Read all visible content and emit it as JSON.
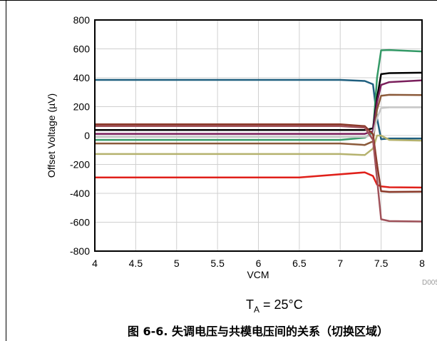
{
  "chart_data": {
    "type": "line",
    "title": "",
    "xlabel": "VCM",
    "ylabel": "Offset Voltage (µV)",
    "xlim": [
      4,
      8
    ],
    "ylim": [
      -800,
      800
    ],
    "x_ticks": [
      "4",
      "4.5",
      "5",
      "5.5",
      "6",
      "6.5",
      "7",
      "7.5",
      "8"
    ],
    "y_ticks": [
      "800",
      "600",
      "400",
      "200",
      "0",
      "-200",
      "-400",
      "-600",
      "-800"
    ],
    "grid": true,
    "legend": "none",
    "chart_id": "D005",
    "series": [
      {
        "color": "#1f5f7f",
        "x": [
          4,
          7.0,
          7.3,
          7.4,
          7.45,
          7.5,
          7.6,
          8
        ],
        "y": [
          385,
          385,
          378,
          355,
          120,
          -25,
          -20,
          -20
        ]
      },
      {
        "color": "#339966",
        "x": [
          4,
          7.0,
          7.3,
          7.4,
          7.45,
          7.5,
          7.6,
          8
        ],
        "y": [
          -30,
          -30,
          -15,
          20,
          400,
          590,
          592,
          582
        ]
      },
      {
        "color": "#000000",
        "x": [
          4,
          7.0,
          7.3,
          7.4,
          7.45,
          7.5,
          7.6,
          8
        ],
        "y": [
          38,
          38,
          38,
          50,
          260,
          425,
          432,
          435
        ]
      },
      {
        "color": "#7a1f5c",
        "x": [
          4,
          7.0,
          7.3,
          7.4,
          7.45,
          7.5,
          7.6,
          8
        ],
        "y": [
          12,
          12,
          12,
          30,
          230,
          350,
          370,
          382
        ]
      },
      {
        "color": "#8b5a3a",
        "x": [
          4,
          7.0,
          7.3,
          7.4,
          7.45,
          7.5,
          7.6,
          8
        ],
        "y": [
          -55,
          -55,
          -65,
          -40,
          180,
          275,
          282,
          280
        ]
      },
      {
        "color": "#c8c8c8",
        "x": [
          4,
          7.0,
          7.3,
          7.4,
          7.45,
          7.5,
          7.6,
          8
        ],
        "y": [
          -10,
          -10,
          -10,
          5,
          120,
          190,
          195,
          195
        ]
      },
      {
        "color": "#b5b26e",
        "x": [
          4,
          7.0,
          7.3,
          7.4,
          7.45,
          7.5,
          7.6,
          8
        ],
        "y": [
          -128,
          -128,
          -135,
          -90,
          0,
          0,
          -30,
          -35
        ]
      },
      {
        "color": "#e0201a",
        "x": [
          4,
          6.5,
          7.3,
          7.4,
          7.45,
          7.5,
          7.6,
          8
        ],
        "y": [
          -290,
          -290,
          -255,
          -280,
          -340,
          -352,
          -358,
          -360
        ]
      },
      {
        "color": "#8b3a2a",
        "x": [
          4,
          7.0,
          7.3,
          7.4,
          7.45,
          7.5,
          7.6,
          8
        ],
        "y": [
          78,
          78,
          65,
          10,
          -200,
          -385,
          -390,
          -388
        ]
      },
      {
        "color": "#a0525a",
        "x": [
          4,
          7.0,
          7.3,
          7.4,
          7.45,
          7.5,
          7.6,
          8
        ],
        "y": [
          65,
          65,
          55,
          -30,
          -300,
          -580,
          -592,
          -595
        ]
      }
    ]
  },
  "condition": {
    "text": "T",
    "sub": "A",
    "rest": " = 25°C"
  },
  "caption": "图 6-6. 失调电压与共模电压间的关系（切换区域）"
}
